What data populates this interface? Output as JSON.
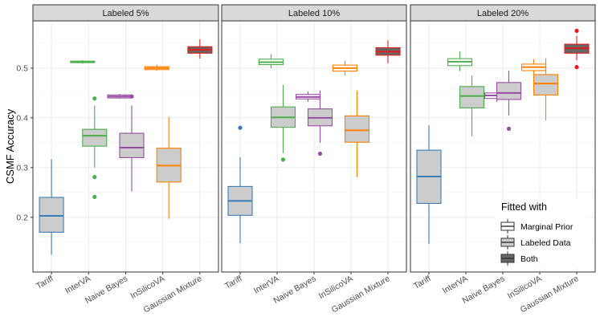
{
  "chart_data": {
    "type": "box",
    "ylabel": "CSMF Accuracy",
    "ylim": [
      0.09,
      0.595
    ],
    "yticks": [
      0.2,
      0.3,
      0.4,
      0.5
    ],
    "ytick_labels": [
      "0.2",
      "0.3",
      "0.4",
      "0.5"
    ],
    "categories": [
      "Tariff",
      "InterVA",
      "Naive Bayes",
      "InSilicoVA",
      "Gaussian Mixture"
    ],
    "method_colors": {
      "Tariff": "#377EB8",
      "InterVA": "#4DAF4A",
      "Naive Bayes": "#984EA3",
      "InSilicoVA": "#FF7F00",
      "Gaussian Mixture": "#E41A1C"
    },
    "fill_colors": {
      "Marginal Prior": "#FFFFFF",
      "Labeled Data": "#CCCCCC",
      "Both": "#666666"
    },
    "legend": {
      "title": "Fitted with",
      "entries": [
        "Marginal Prior",
        "Labeled Data",
        "Both"
      ]
    },
    "panels": [
      {
        "label": "Labeled 5%",
        "boxes": [
          {
            "method": "Tariff",
            "slot": 0,
            "fit": "Labeled Data",
            "min": 0.125,
            "q1": 0.17,
            "median": 0.203,
            "q3": 0.24,
            "max": 0.317,
            "outliers": []
          },
          {
            "method": "InterVA",
            "slot": 1,
            "fit": "Marginal Prior",
            "min": 0.509,
            "q1": 0.511,
            "median": 0.512,
            "q3": 0.514,
            "max": 0.516,
            "outliers": []
          },
          {
            "method": "InterVA",
            "slot": 1,
            "fit": "Labeled Data",
            "min": 0.3,
            "q1": 0.343,
            "median": 0.364,
            "q3": 0.377,
            "max": 0.425,
            "outliers": [
              0.439,
              0.281,
              0.241
            ]
          },
          {
            "method": "Naive Bayes",
            "slot": 2,
            "fit": "Marginal Prior",
            "min": 0.438,
            "q1": 0.44,
            "median": 0.443,
            "q3": 0.446,
            "max": 0.448,
            "outliers": []
          },
          {
            "method": "Naive Bayes",
            "slot": 2,
            "fit": "Labeled Data",
            "min": 0.252,
            "q1": 0.32,
            "median": 0.34,
            "q3": 0.369,
            "max": 0.425,
            "outliers": [
              0.443
            ]
          },
          {
            "method": "InSilicoVA",
            "slot": 3,
            "fit": "Marginal Prior",
            "min": 0.495,
            "q1": 0.497,
            "median": 0.5,
            "q3": 0.503,
            "max": 0.507,
            "outliers": []
          },
          {
            "method": "InSilicoVA",
            "slot": 3,
            "fit": "Labeled Data",
            "min": 0.197,
            "q1": 0.271,
            "median": 0.304,
            "q3": 0.339,
            "max": 0.402,
            "outliers": []
          },
          {
            "method": "Gaussian Mixture",
            "slot": 4,
            "fit": "Both",
            "min": 0.519,
            "q1": 0.53,
            "median": 0.537,
            "q3": 0.543,
            "max": 0.558,
            "outliers": []
          }
        ]
      },
      {
        "label": "Labeled 10%",
        "boxes": [
          {
            "method": "Tariff",
            "slot": 0,
            "fit": "Labeled Data",
            "min": 0.148,
            "q1": 0.204,
            "median": 0.233,
            "q3": 0.262,
            "max": 0.321,
            "outliers": [
              0.38
            ]
          },
          {
            "method": "InterVA",
            "slot": 1,
            "fit": "Marginal Prior",
            "min": 0.5,
            "q1": 0.507,
            "median": 0.512,
            "q3": 0.518,
            "max": 0.528,
            "outliers": []
          },
          {
            "method": "InterVA",
            "slot": 1,
            "fit": "Labeled Data",
            "min": 0.329,
            "q1": 0.381,
            "median": 0.401,
            "q3": 0.422,
            "max": 0.466,
            "outliers": [
              0.316
            ]
          },
          {
            "method": "Naive Bayes",
            "slot": 2,
            "fit": "Marginal Prior",
            "min": 0.432,
            "q1": 0.438,
            "median": 0.442,
            "q3": 0.447,
            "max": 0.453,
            "outliers": []
          },
          {
            "method": "Naive Bayes",
            "slot": 2,
            "fit": "Labeled Data",
            "min": 0.35,
            "q1": 0.384,
            "median": 0.4,
            "q3": 0.418,
            "max": 0.455,
            "outliers": [
              0.328
            ]
          },
          {
            "method": "InSilicoVA",
            "slot": 3,
            "fit": "Marginal Prior",
            "min": 0.485,
            "q1": 0.494,
            "median": 0.5,
            "q3": 0.506,
            "max": 0.515,
            "outliers": []
          },
          {
            "method": "InSilicoVA",
            "slot": 3,
            "fit": "Labeled Data",
            "min": 0.281,
            "q1": 0.351,
            "median": 0.375,
            "q3": 0.404,
            "max": 0.455,
            "outliers": []
          },
          {
            "method": "Gaussian Mixture",
            "slot": 4,
            "fit": "Both",
            "min": 0.51,
            "q1": 0.526,
            "median": 0.533,
            "q3": 0.541,
            "max": 0.556,
            "outliers": []
          }
        ]
      },
      {
        "label": "Labeled 20%",
        "boxes": [
          {
            "method": "Tariff",
            "slot": 0,
            "fit": "Labeled Data",
            "min": 0.147,
            "q1": 0.228,
            "median": 0.282,
            "q3": 0.335,
            "max": 0.385,
            "outliers": []
          },
          {
            "method": "InterVA",
            "slot": 1,
            "fit": "Marginal Prior",
            "min": 0.494,
            "q1": 0.505,
            "median": 0.513,
            "q3": 0.519,
            "max": 0.533,
            "outliers": []
          },
          {
            "method": "InterVA",
            "slot": 1,
            "fit": "Labeled Data",
            "min": 0.363,
            "q1": 0.42,
            "median": 0.444,
            "q3": 0.463,
            "max": 0.485,
            "outliers": []
          },
          {
            "method": "Naive Bayes",
            "slot": 2,
            "fit": "Marginal Prior",
            "min": 0.432,
            "q1": 0.439,
            "median": 0.445,
            "q3": 0.45,
            "max": 0.458,
            "outliers": []
          },
          {
            "method": "Naive Bayes",
            "slot": 2,
            "fit": "Labeled Data",
            "min": 0.405,
            "q1": 0.437,
            "median": 0.45,
            "q3": 0.471,
            "max": 0.495,
            "outliers": [
              0.378
            ]
          },
          {
            "method": "InSilicoVA",
            "slot": 3,
            "fit": "Marginal Prior",
            "min": 0.488,
            "q1": 0.495,
            "median": 0.502,
            "q3": 0.508,
            "max": 0.518,
            "outliers": []
          },
          {
            "method": "InSilicoVA",
            "slot": 3,
            "fit": "Labeled Data",
            "min": 0.395,
            "q1": 0.446,
            "median": 0.469,
            "q3": 0.487,
            "max": 0.52,
            "outliers": []
          },
          {
            "method": "Gaussian Mixture",
            "slot": 4,
            "fit": "Both",
            "min": 0.516,
            "q1": 0.53,
            "median": 0.54,
            "q3": 0.548,
            "max": 0.565,
            "outliers": [
              0.575,
              0.502
            ]
          }
        ]
      }
    ]
  }
}
